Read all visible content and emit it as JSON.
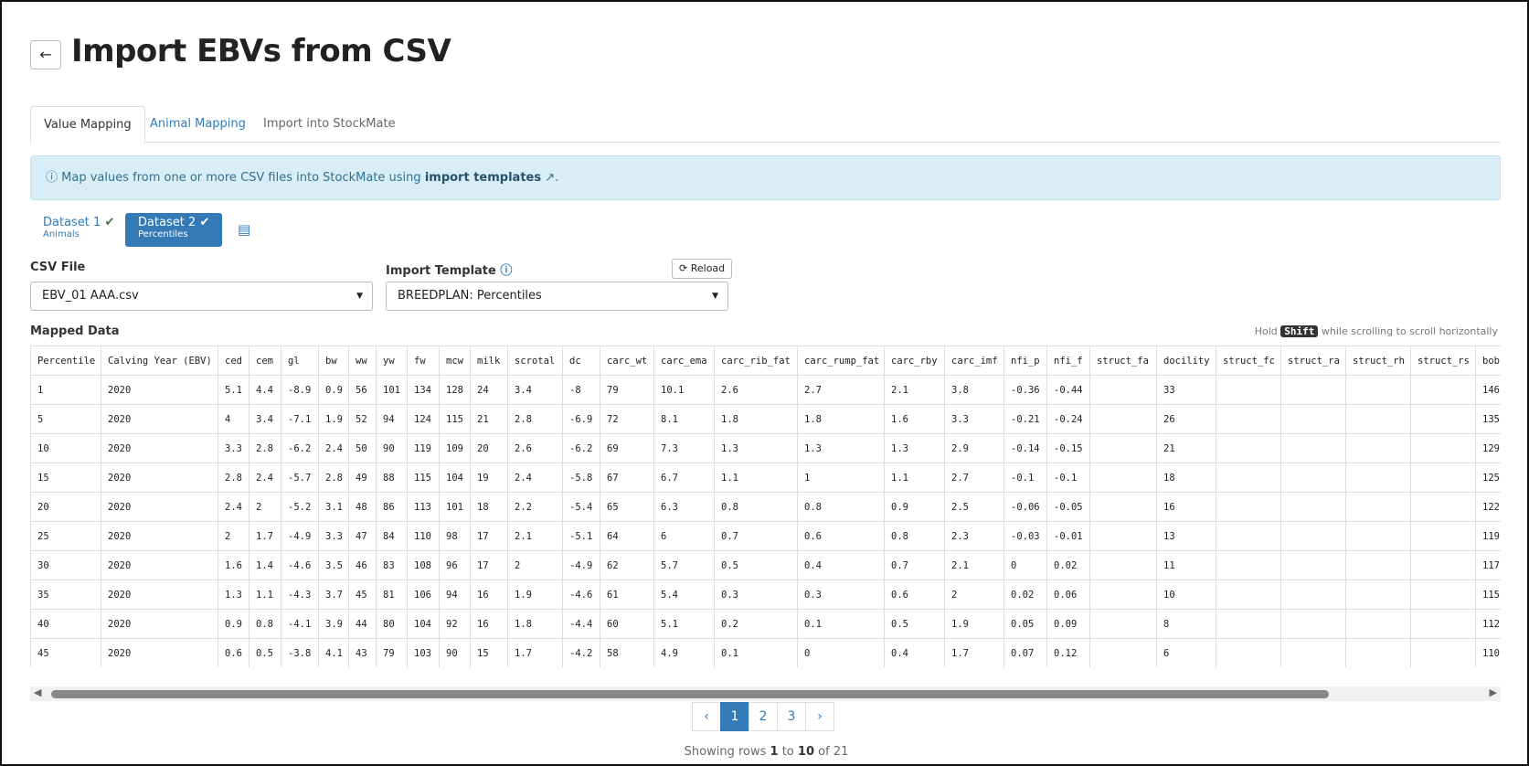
{
  "header": {
    "back": "←",
    "title": "Import EBVs from CSV"
  },
  "tabs": [
    "Value Mapping",
    "Animal Mapping",
    "Import into StockMate"
  ],
  "info": {
    "text": "Map values from one or more CSV files into StockMate using",
    "link": "import templates",
    "end": "."
  },
  "datasets": [
    {
      "name": "Dataset 1",
      "sub": "Animals"
    },
    {
      "name": "Dataset 2",
      "sub": "Percentiles"
    }
  ],
  "form": {
    "csv_label": "CSV File",
    "csv_value": "EBV_01 AAA.csv",
    "template_label": "Import Template",
    "reload": "Reload",
    "template_value": "BREEDPLAN: Percentiles"
  },
  "mapped": {
    "title": "Mapped Data",
    "hint_pre": "Hold",
    "hint_key": "Shift",
    "hint_post": "while scrolling to scroll horizontally"
  },
  "table": {
    "columns": [
      "Percentile",
      "Calving Year (EBV)",
      "ced",
      "cem",
      "gl",
      "bw",
      "ww",
      "yw",
      "fw",
      "mcw",
      "milk",
      "scrotal",
      "dc",
      "carc_wt",
      "carc_ema",
      "carc_rib_fat",
      "carc_rump_fat",
      "carc_rby",
      "carc_imf",
      "nfi_p",
      "nfi_f",
      "struct_fa",
      "docility",
      "struct_fc",
      "struct_ra",
      "struct_rh",
      "struct_rs",
      "bob"
    ],
    "rows": [
      [
        "1",
        "2020",
        "5.1",
        "4.4",
        "-8.9",
        "0.9",
        "56",
        "101",
        "134",
        "128",
        "24",
        "3.4",
        "-8",
        "79",
        "10.1",
        "2.6",
        "2.7",
        "2.1",
        "3.8",
        "-0.36",
        "-0.44",
        null,
        "33",
        null,
        null,
        null,
        null,
        "146"
      ],
      [
        "5",
        "2020",
        "4",
        "3.4",
        "-7.1",
        "1.9",
        "52",
        "94",
        "124",
        "115",
        "21",
        "2.8",
        "-6.9",
        "72",
        "8.1",
        "1.8",
        "1.8",
        "1.6",
        "3.3",
        "-0.21",
        "-0.24",
        null,
        "26",
        null,
        null,
        null,
        null,
        "135"
      ],
      [
        "10",
        "2020",
        "3.3",
        "2.8",
        "-6.2",
        "2.4",
        "50",
        "90",
        "119",
        "109",
        "20",
        "2.6",
        "-6.2",
        "69",
        "7.3",
        "1.3",
        "1.3",
        "1.3",
        "2.9",
        "-0.14",
        "-0.15",
        null,
        "21",
        null,
        null,
        null,
        null,
        "129"
      ],
      [
        "15",
        "2020",
        "2.8",
        "2.4",
        "-5.7",
        "2.8",
        "49",
        "88",
        "115",
        "104",
        "19",
        "2.4",
        "-5.8",
        "67",
        "6.7",
        "1.1",
        "1",
        "1.1",
        "2.7",
        "-0.1",
        "-0.1",
        null,
        "18",
        null,
        null,
        null,
        null,
        "125"
      ],
      [
        "20",
        "2020",
        "2.4",
        "2",
        "-5.2",
        "3.1",
        "48",
        "86",
        "113",
        "101",
        "18",
        "2.2",
        "-5.4",
        "65",
        "6.3",
        "0.8",
        "0.8",
        "0.9",
        "2.5",
        "-0.06",
        "-0.05",
        null,
        "16",
        null,
        null,
        null,
        null,
        "122"
      ],
      [
        "25",
        "2020",
        "2",
        "1.7",
        "-4.9",
        "3.3",
        "47",
        "84",
        "110",
        "98",
        "17",
        "2.1",
        "-5.1",
        "64",
        "6",
        "0.7",
        "0.6",
        "0.8",
        "2.3",
        "-0.03",
        "-0.01",
        null,
        "13",
        null,
        null,
        null,
        null,
        "119"
      ],
      [
        "30",
        "2020",
        "1.6",
        "1.4",
        "-4.6",
        "3.5",
        "46",
        "83",
        "108",
        "96",
        "17",
        "2",
        "-4.9",
        "62",
        "5.7",
        "0.5",
        "0.4",
        "0.7",
        "2.1",
        "0",
        "0.02",
        null,
        "11",
        null,
        null,
        null,
        null,
        "117"
      ],
      [
        "35",
        "2020",
        "1.3",
        "1.1",
        "-4.3",
        "3.7",
        "45",
        "81",
        "106",
        "94",
        "16",
        "1.9",
        "-4.6",
        "61",
        "5.4",
        "0.3",
        "0.3",
        "0.6",
        "2",
        "0.02",
        "0.06",
        null,
        "10",
        null,
        null,
        null,
        null,
        "115"
      ],
      [
        "40",
        "2020",
        "0.9",
        "0.8",
        "-4.1",
        "3.9",
        "44",
        "80",
        "104",
        "92",
        "16",
        "1.8",
        "-4.4",
        "60",
        "5.1",
        "0.2",
        "0.1",
        "0.5",
        "1.9",
        "0.05",
        "0.09",
        null,
        "8",
        null,
        null,
        null,
        null,
        "112"
      ],
      [
        "45",
        "2020",
        "0.6",
        "0.5",
        "-3.8",
        "4.1",
        "43",
        "79",
        "103",
        "90",
        "15",
        "1.7",
        "-4.2",
        "58",
        "4.9",
        "0.1",
        "0",
        "0.4",
        "1.7",
        "0.07",
        "0.12",
        null,
        "6",
        null,
        null,
        null,
        null,
        "110"
      ]
    ]
  },
  "pagination": {
    "pages": [
      "1",
      "2",
      "3"
    ],
    "status": {
      "pre": "Showing rows",
      "from": "1",
      "to_word": "to",
      "to": "10",
      "post": "of 21"
    }
  }
}
